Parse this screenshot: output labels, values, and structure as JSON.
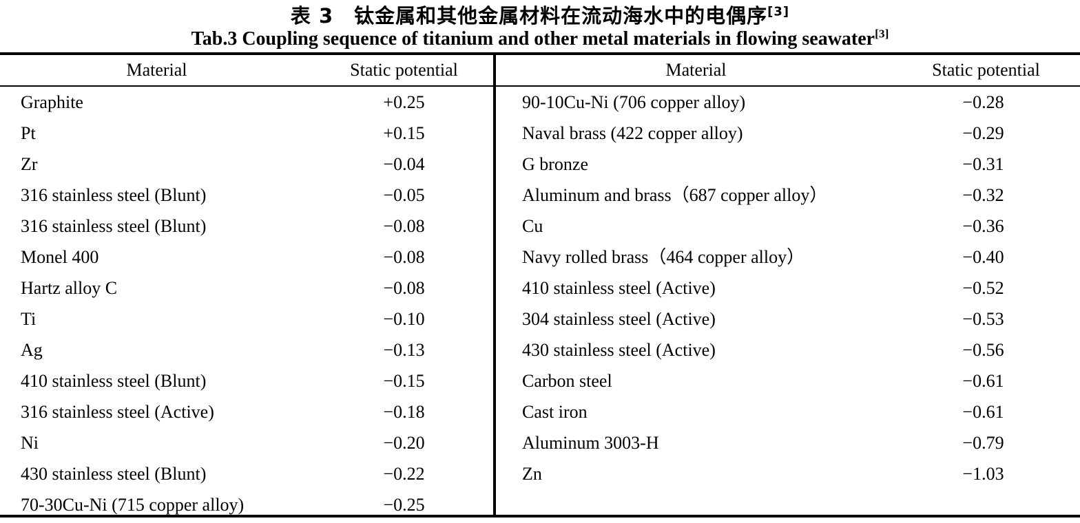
{
  "titles": {
    "chinese": "表 3　钛金属和其他金属材料在流动海水中的电偶序",
    "chinese_ref": "[3]",
    "english": "Tab.3 Coupling sequence of titanium and other metal materials in flowing seawater",
    "english_ref": "[3]"
  },
  "table": {
    "header": {
      "material": "Material",
      "potential": "Static potential"
    },
    "left_rows": [
      {
        "material": "Graphite",
        "potential": "+0.25"
      },
      {
        "material": "Pt",
        "potential": "+0.15"
      },
      {
        "material": "Zr",
        "potential": "−0.04"
      },
      {
        "material": "316 stainless steel (Blunt)",
        "potential": "−0.05"
      },
      {
        "material": "316 stainless steel (Blunt)",
        "potential": "−0.08"
      },
      {
        "material": "Monel 400",
        "potential": "−0.08"
      },
      {
        "material": "Hartz alloy C",
        "potential": "−0.08"
      },
      {
        "material": "Ti",
        "potential": "−0.10"
      },
      {
        "material": "Ag",
        "potential": "−0.13"
      },
      {
        "material": "410 stainless steel (Blunt)",
        "potential": "−0.15"
      },
      {
        "material": "316 stainless steel (Active)",
        "potential": "−0.18"
      },
      {
        "material": "Ni",
        "potential": "−0.20"
      },
      {
        "material": "430 stainless steel (Blunt)",
        "potential": "−0.22"
      },
      {
        "material": "70-30Cu-Ni (715 copper alloy)",
        "potential": "−0.25"
      }
    ],
    "right_rows": [
      {
        "material": "90-10Cu-Ni (706 copper alloy)",
        "potential": "−0.28"
      },
      {
        "material": "Naval brass (422 copper alloy)",
        "potential": "−0.29"
      },
      {
        "material": "G bronze",
        "potential": "−0.31"
      },
      {
        "material": "Aluminum and brass（687 copper alloy）",
        "potential": "−0.32"
      },
      {
        "material": "Cu",
        "potential": "−0.36"
      },
      {
        "material": "Navy rolled brass（464 copper alloy）",
        "potential": "−0.40"
      },
      {
        "material": "410 stainless steel (Active)",
        "potential": "−0.52"
      },
      {
        "material": "304 stainless steel (Active)",
        "potential": "−0.53"
      },
      {
        "material": "430 stainless steel (Active)",
        "potential": "−0.56"
      },
      {
        "material": "Carbon steel",
        "potential": "−0.61"
      },
      {
        "material": "Cast iron",
        "potential": "−0.61"
      },
      {
        "material": "Aluminum 3003-H",
        "potential": "−0.79"
      },
      {
        "material": "Zn",
        "potential": "−1.03"
      }
    ]
  },
  "chart_data": {
    "type": "table",
    "title": "Tab.3 Coupling sequence of titanium and other metal materials in flowing seawater [3]",
    "columns": [
      "Material",
      "Static potential"
    ],
    "rows": [
      [
        "Graphite",
        0.25
      ],
      [
        "Pt",
        0.15
      ],
      [
        "Zr",
        -0.04
      ],
      [
        "316 stainless steel (Blunt)",
        -0.05
      ],
      [
        "316 stainless steel (Blunt)",
        -0.08
      ],
      [
        "Monel 400",
        -0.08
      ],
      [
        "Hartz alloy C",
        -0.08
      ],
      [
        "Ti",
        -0.1
      ],
      [
        "Ag",
        -0.13
      ],
      [
        "410 stainless steel (Blunt)",
        -0.15
      ],
      [
        "316 stainless steel (Active)",
        -0.18
      ],
      [
        "Ni",
        -0.2
      ],
      [
        "430 stainless steel (Blunt)",
        -0.22
      ],
      [
        "70-30Cu-Ni (715 copper alloy)",
        -0.25
      ],
      [
        "90-10Cu-Ni (706 copper alloy)",
        -0.28
      ],
      [
        "Naval brass (422 copper alloy)",
        -0.29
      ],
      [
        "G bronze",
        -0.31
      ],
      [
        "Aluminum and brass (687 copper alloy)",
        -0.32
      ],
      [
        "Cu",
        -0.36
      ],
      [
        "Navy rolled brass (464 copper alloy)",
        -0.4
      ],
      [
        "410 stainless steel (Active)",
        -0.52
      ],
      [
        "304 stainless steel (Active)",
        -0.53
      ],
      [
        "430 stainless steel (Active)",
        -0.56
      ],
      [
        "Carbon steel",
        -0.61
      ],
      [
        "Cast iron",
        -0.61
      ],
      [
        "Aluminum 3003-H",
        -0.79
      ],
      [
        "Zn",
        -1.03
      ]
    ]
  },
  "colors": {
    "background": "#ffffff",
    "text": "#000000",
    "rule": "#000000"
  }
}
